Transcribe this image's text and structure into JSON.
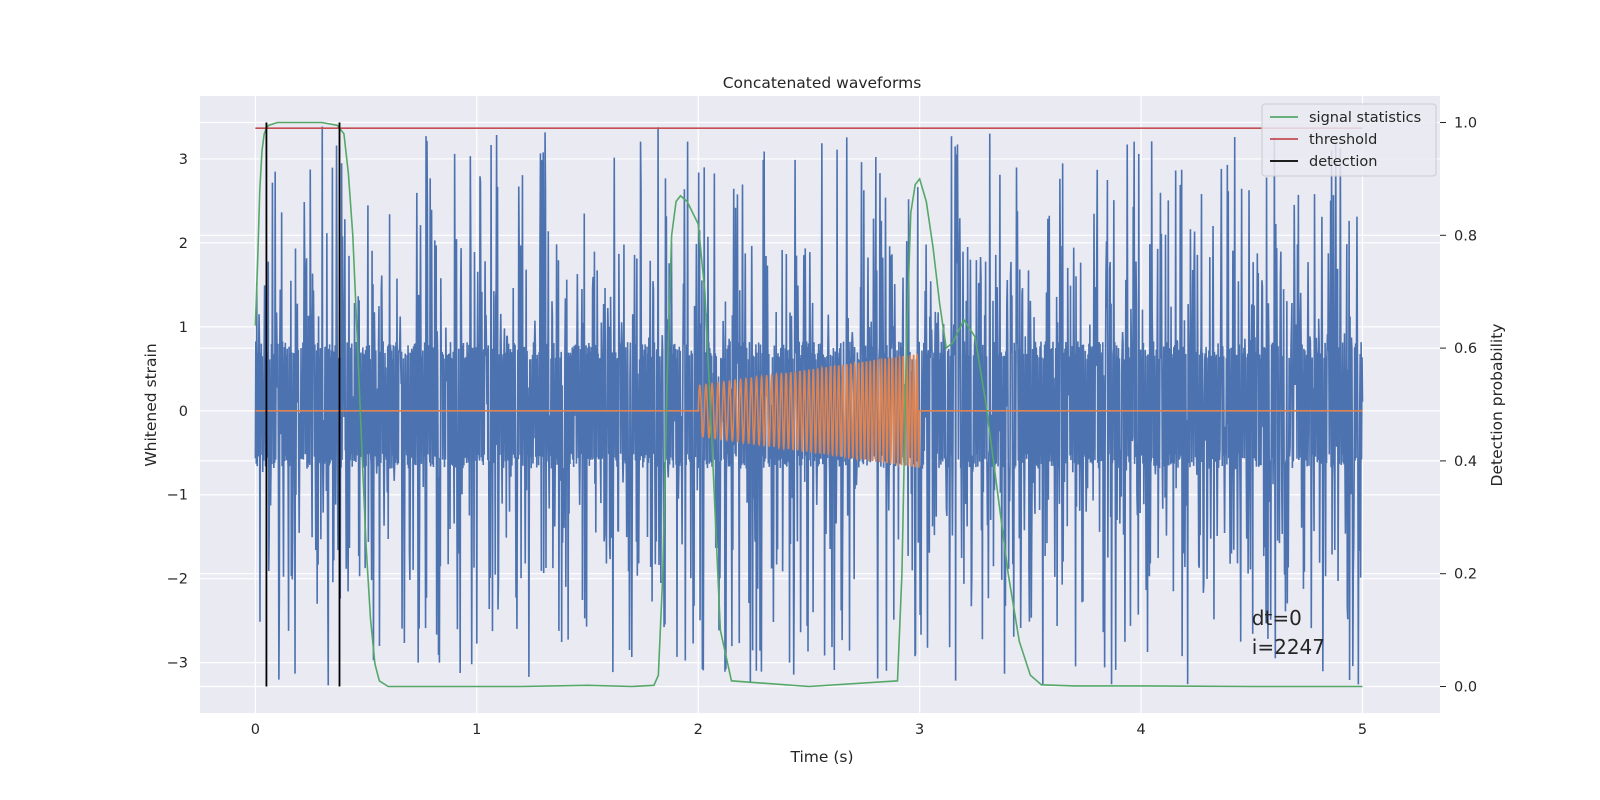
{
  "chart_data": {
    "type": "line",
    "title": "Concatenated waveforms",
    "xlabel": "Time (s)",
    "ylabel": "Whitened strain",
    "y2label": "Detection probability",
    "xlim": [
      -0.25,
      5.35
    ],
    "ylim": [
      -3.6,
      3.75
    ],
    "y2lim": [
      -0.047,
      1.047
    ],
    "xticks": [
      0,
      1,
      2,
      3,
      4,
      5
    ],
    "yticks": [
      -3,
      -2,
      -1,
      0,
      1,
      2,
      3
    ],
    "y2ticks": [
      0.0,
      0.2,
      0.4,
      0.6,
      0.8,
      1.0
    ],
    "grid": true,
    "legend_position": "top-right",
    "legend": [
      {
        "name": "signal statistics",
        "color": "#55a868"
      },
      {
        "name": "threshold",
        "color": "#c44e52"
      },
      {
        "name": "detection",
        "color": "#000000"
      }
    ],
    "colors": {
      "strain": "#4c72b0",
      "injection": "#dd8452",
      "signal_statistics": "#55a868",
      "threshold": "#c44e52",
      "detection": "#000000",
      "axes_bg": "#eaeaf2",
      "grid": "#ffffff"
    },
    "series": [
      {
        "axis": "left",
        "description_color": "#4c72b0",
        "t_range": [
          0,
          5
        ],
        "noise_band": [
          -0.6,
          0.72
        ],
        "peak_range": [
          -3.3,
          3.4
        ]
      },
      {
        "axis": "left",
        "t_range": [
          0,
          5
        ],
        "chirp": {
          "t_start": 2.0,
          "t_end": 3.0,
          "amp_start": 0.3,
          "amp_end": 0.68,
          "cycles": 50
        }
      },
      {
        "name": "signal statistics",
        "axis": "right",
        "x": [
          0.0,
          0.01,
          0.02,
          0.03,
          0.04,
          0.05,
          0.06,
          0.1,
          0.2,
          0.3,
          0.37,
          0.4,
          0.42,
          0.44,
          0.46,
          0.48,
          0.5,
          0.52,
          0.54,
          0.56,
          0.6,
          0.8,
          1.0,
          1.2,
          1.5,
          1.7,
          1.8,
          1.82,
          1.84,
          1.86,
          1.88,
          1.9,
          1.92,
          1.95,
          2.0,
          2.03,
          2.06,
          2.1,
          2.15,
          2.5,
          2.9,
          2.92,
          2.94,
          2.96,
          2.98,
          3.0,
          3.03,
          3.06,
          3.09,
          3.12,
          3.15,
          3.2,
          3.25,
          3.3,
          3.35,
          3.4,
          3.45,
          3.5,
          3.55,
          3.7,
          4.0,
          4.5,
          5.0
        ],
        "y": [
          0.64,
          0.75,
          0.88,
          0.95,
          0.98,
          0.99,
          0.995,
          1.0,
          1.0,
          1.0,
          0.995,
          0.98,
          0.91,
          0.8,
          0.62,
          0.43,
          0.25,
          0.12,
          0.04,
          0.01,
          0.0,
          0.0,
          0.0,
          0.0,
          0.002,
          0.0,
          0.002,
          0.02,
          0.2,
          0.55,
          0.8,
          0.86,
          0.87,
          0.86,
          0.82,
          0.7,
          0.45,
          0.1,
          0.01,
          0.0,
          0.01,
          0.2,
          0.6,
          0.84,
          0.89,
          0.9,
          0.86,
          0.78,
          0.68,
          0.6,
          0.61,
          0.65,
          0.62,
          0.5,
          0.35,
          0.2,
          0.08,
          0.02,
          0.003,
          0.001,
          0.001,
          0.0,
          0.0
        ]
      },
      {
        "name": "threshold",
        "axis": "right",
        "x": [
          0,
          5
        ],
        "y": [
          0.99,
          0.99
        ]
      },
      {
        "name": "detection",
        "axis": "right",
        "vlines": [
          0.05,
          0.38
        ],
        "ymin": 0.0,
        "ymax": 1.0
      }
    ],
    "annotations": [
      {
        "text": "dt=0",
        "x": 4.5,
        "y": -2.55
      },
      {
        "text": "i=2247",
        "x": 4.5,
        "y": -2.9
      }
    ]
  }
}
